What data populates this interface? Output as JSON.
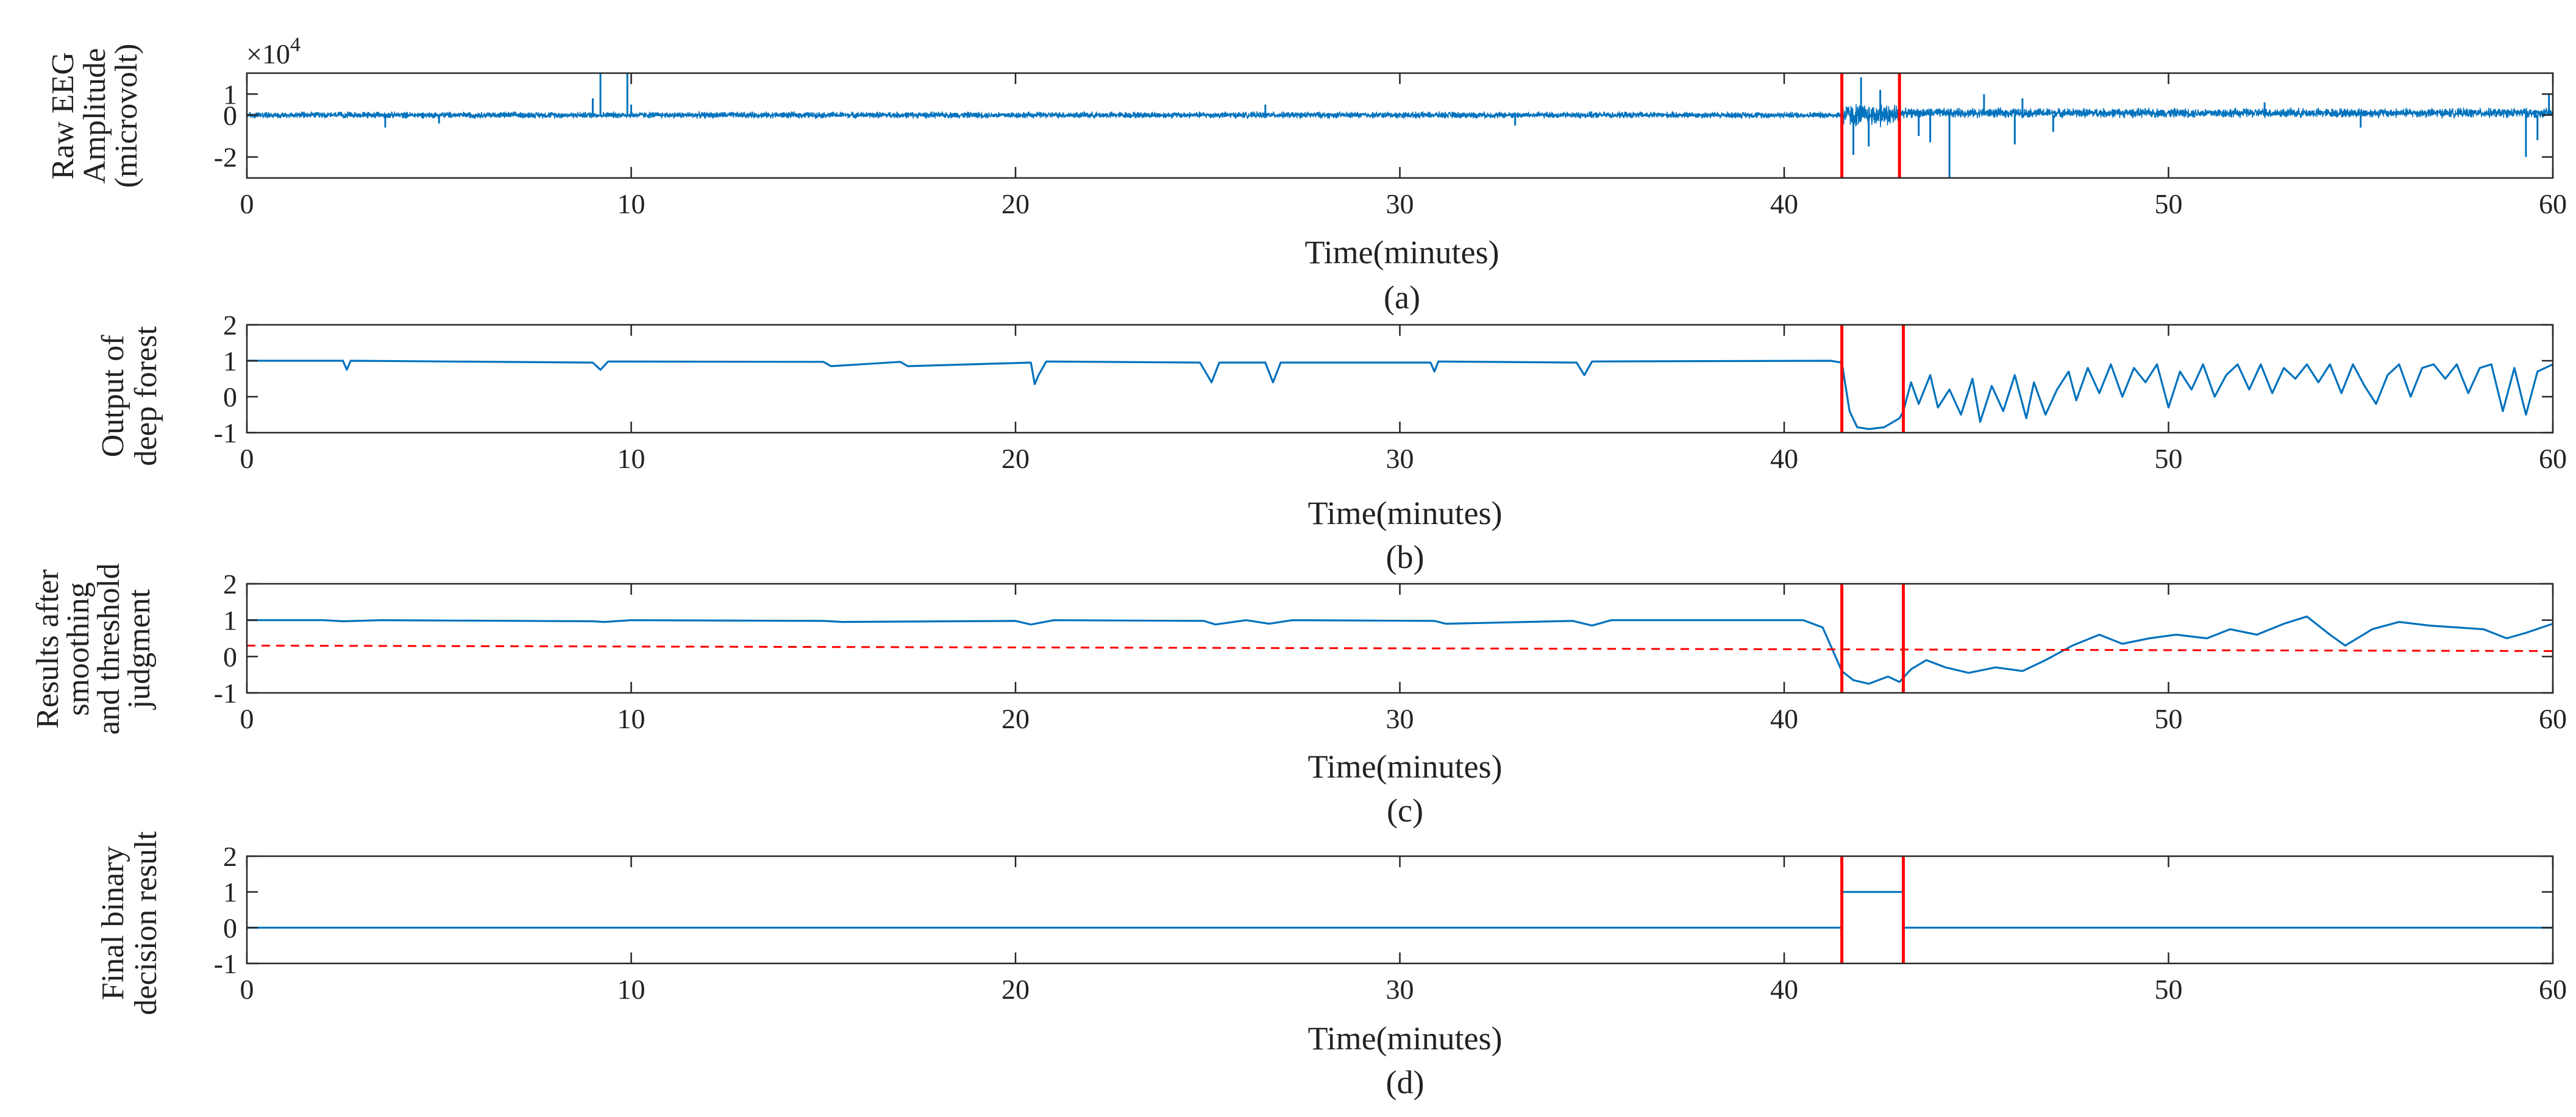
{
  "figure": {
    "colors": {
      "signal": "#0072BD",
      "marker": "#FF0000",
      "threshold": "#FF0000",
      "axis": "#262626"
    }
  },
  "chart_data": [
    {
      "id": "a",
      "type": "line",
      "caption": "(a)",
      "xlabel": "Time(minutes)",
      "ylabel": [
        "Raw EEG",
        "Amplitude",
        "(microvolt)"
      ],
      "y_exponent": "×10",
      "y_exponent_power": "4",
      "xlim": [
        0,
        60
      ],
      "ylim": [
        -3,
        2
      ],
      "xticks": [
        0,
        10,
        20,
        30,
        40,
        50,
        60
      ],
      "yticks": [
        -2,
        0,
        1
      ],
      "ytick_labels": [
        "-2",
        "0",
        "1"
      ],
      "markers": [
        41.5,
        43.0
      ],
      "series": [
        {
          "name": "Raw EEG",
          "mode": "noise",
          "segments": [
            {
              "x0": 0,
              "x1": 41.5,
              "base": 0,
              "amp": 0.12
            },
            {
              "x0": 41.5,
              "x1": 43.0,
              "base": 0,
              "amp": 0.45
            },
            {
              "x0": 43.0,
              "x1": 60,
              "base": 0.1,
              "amp": 0.18
            }
          ],
          "spikes": [
            {
              "x": 9.0,
              "y": 0.8
            },
            {
              "x": 9.2,
              "y": 2.0
            },
            {
              "x": 9.9,
              "y": 2.0
            },
            {
              "x": 10.0,
              "y": 0.5
            },
            {
              "x": 3.6,
              "y": -0.6
            },
            {
              "x": 5.0,
              "y": -0.4
            },
            {
              "x": 26.5,
              "y": 0.5
            },
            {
              "x": 33.0,
              "y": -0.5
            },
            {
              "x": 41.8,
              "y": -1.9
            },
            {
              "x": 42.0,
              "y": 1.8
            },
            {
              "x": 42.2,
              "y": -1.5
            },
            {
              "x": 42.5,
              "y": 1.2
            },
            {
              "x": 43.5,
              "y": -1.0
            },
            {
              "x": 43.8,
              "y": -1.3
            },
            {
              "x": 44.3,
              "y": -3.0
            },
            {
              "x": 45.2,
              "y": 1.0
            },
            {
              "x": 46.0,
              "y": -1.4
            },
            {
              "x": 46.2,
              "y": 0.8
            },
            {
              "x": 47.0,
              "y": -0.8
            },
            {
              "x": 52.5,
              "y": 0.6
            },
            {
              "x": 55.0,
              "y": -0.6
            },
            {
              "x": 59.3,
              "y": -2.0
            },
            {
              "x": 59.6,
              "y": -1.2
            },
            {
              "x": 59.9,
              "y": 1.0
            }
          ]
        }
      ]
    },
    {
      "id": "b",
      "type": "line",
      "caption": "(b)",
      "xlabel": "Time(minutes)",
      "ylabel": [
        "Output of",
        "deep forest"
      ],
      "xlim": [
        0,
        60
      ],
      "ylim": [
        -1,
        2
      ],
      "xticks": [
        0,
        10,
        20,
        30,
        40,
        50,
        60
      ],
      "yticks": [
        -1,
        0,
        1,
        2
      ],
      "ytick_labels": [
        "-1",
        "0",
        "1",
        "2"
      ],
      "markers": [
        41.5,
        43.1
      ],
      "series": [
        {
          "name": "Deep forest output",
          "mode": "points",
          "x": [
            0,
            2.5,
            2.6,
            2.7,
            9.0,
            9.2,
            9.4,
            15.0,
            15.2,
            17.0,
            17.2,
            20.4,
            20.5,
            20.6,
            20.8,
            24.8,
            25.1,
            25.3,
            26.5,
            26.7,
            26.9,
            30.8,
            30.9,
            31.0,
            34.6,
            34.8,
            35.0,
            41.2,
            41.5,
            41.7,
            41.9,
            42.2,
            42.6,
            43.0,
            43.1,
            43.3,
            43.5,
            43.8,
            44.0,
            44.3,
            44.6,
            44.9,
            45.1,
            45.4,
            45.7,
            46.0,
            46.3,
            46.5,
            46.8,
            47.1,
            47.4,
            47.6,
            47.9,
            48.2,
            48.5,
            48.8,
            49.1,
            49.4,
            49.7,
            50.0,
            50.3,
            50.6,
            50.9,
            51.2,
            51.5,
            51.8,
            52.1,
            52.4,
            52.7,
            53.0,
            53.3,
            53.6,
            53.9,
            54.2,
            54.5,
            54.8,
            55.1,
            55.4,
            55.7,
            56.0,
            56.3,
            56.6,
            56.9,
            57.2,
            57.5,
            57.8,
            58.1,
            58.4,
            58.7,
            59.0,
            59.3,
            59.6,
            60
          ],
          "y": [
            1.0,
            1.0,
            0.75,
            1.0,
            0.95,
            0.75,
            0.98,
            0.97,
            0.85,
            0.97,
            0.85,
            0.95,
            0.35,
            0.6,
            0.98,
            0.95,
            0.4,
            0.95,
            0.95,
            0.4,
            0.95,
            0.95,
            0.7,
            0.98,
            0.95,
            0.6,
            0.98,
            1.0,
            0.95,
            -0.4,
            -0.85,
            -0.9,
            -0.85,
            -0.6,
            -0.4,
            0.4,
            -0.2,
            0.6,
            -0.3,
            0.2,
            -0.5,
            0.5,
            -0.7,
            0.3,
            -0.4,
            0.6,
            -0.6,
            0.4,
            -0.5,
            0.2,
            0.7,
            -0.1,
            0.8,
            0.1,
            0.9,
            0.0,
            0.8,
            0.4,
            0.9,
            -0.3,
            0.7,
            0.2,
            0.9,
            0.0,
            0.6,
            0.9,
            0.2,
            0.9,
            0.1,
            0.8,
            0.5,
            0.9,
            0.4,
            0.9,
            0.1,
            0.9,
            0.3,
            -0.2,
            0.6,
            0.9,
            0.0,
            0.8,
            0.9,
            0.5,
            0.9,
            0.1,
            0.8,
            0.9,
            -0.4,
            0.8,
            -0.5,
            0.7,
            0.9
          ]
        }
      ]
    },
    {
      "id": "c",
      "type": "line",
      "caption": "(c)",
      "xlabel": "Time(minutes)",
      "ylabel": [
        "Results after",
        "smoothing",
        "and threshold",
        "judgment"
      ],
      "xlim": [
        0,
        60
      ],
      "ylim": [
        -1,
        2
      ],
      "xticks": [
        0,
        10,
        20,
        30,
        40,
        50,
        60
      ],
      "yticks": [
        -1,
        0,
        1,
        2
      ],
      "ytick_labels": [
        "-1",
        "0",
        "1",
        "2"
      ],
      "markers": [
        41.5,
        43.1
      ],
      "threshold": {
        "x0": 0,
        "x1": 60,
        "y0": 0.3,
        "y1": 0.15
      },
      "series": [
        {
          "name": "Smoothed output",
          "mode": "points",
          "x": [
            0,
            2.0,
            2.5,
            3.5,
            9.0,
            9.3,
            10,
            15.0,
            15.5,
            20.0,
            20.4,
            21.0,
            24.9,
            25.2,
            26.0,
            26.6,
            27.2,
            30.9,
            31.2,
            34.5,
            35.0,
            35.5,
            40.5,
            41.0,
            41.5,
            41.8,
            42.2,
            42.7,
            43.0,
            43.3,
            43.7,
            44.2,
            44.8,
            45.5,
            46.2,
            46.8,
            47.5,
            48.2,
            48.8,
            49.5,
            50.2,
            51.0,
            51.6,
            52.3,
            53.0,
            53.6,
            54.2,
            54.6,
            55.3,
            56.0,
            56.8,
            57.5,
            58.2,
            58.8,
            59.3,
            60
          ],
          "y": [
            1.0,
            1.0,
            0.97,
            1.0,
            0.97,
            0.95,
            1.0,
            0.98,
            0.95,
            0.98,
            0.88,
            1.0,
            0.98,
            0.88,
            1.0,
            0.9,
            1.0,
            0.98,
            0.9,
            0.98,
            0.85,
            1.0,
            1.0,
            0.8,
            -0.4,
            -0.65,
            -0.75,
            -0.55,
            -0.7,
            -0.35,
            -0.1,
            -0.3,
            -0.45,
            -0.3,
            -0.4,
            -0.1,
            0.3,
            0.6,
            0.35,
            0.5,
            0.6,
            0.5,
            0.75,
            0.6,
            0.9,
            1.1,
            0.6,
            0.3,
            0.75,
            0.95,
            0.85,
            0.8,
            0.75,
            0.5,
            0.65,
            0.9
          ]
        }
      ]
    },
    {
      "id": "d",
      "type": "line",
      "caption": "(d)",
      "xlabel": "Time(minutes)",
      "ylabel": [
        "Final binary",
        "decision result"
      ],
      "xlim": [
        0,
        60
      ],
      "ylim": [
        -1,
        2
      ],
      "xticks": [
        0,
        10,
        20,
        30,
        40,
        50,
        60
      ],
      "yticks": [
        -1,
        0,
        1,
        2
      ],
      "ytick_labels": [
        "-1",
        "0",
        "1",
        "2"
      ],
      "markers": [
        41.5,
        43.1
      ],
      "series": [
        {
          "name": "Binary decision",
          "mode": "points",
          "x": [
            0,
            41.5,
            41.5,
            43.1,
            43.1,
            60
          ],
          "y": [
            0,
            0,
            1,
            1,
            0,
            0
          ]
        }
      ]
    }
  ]
}
